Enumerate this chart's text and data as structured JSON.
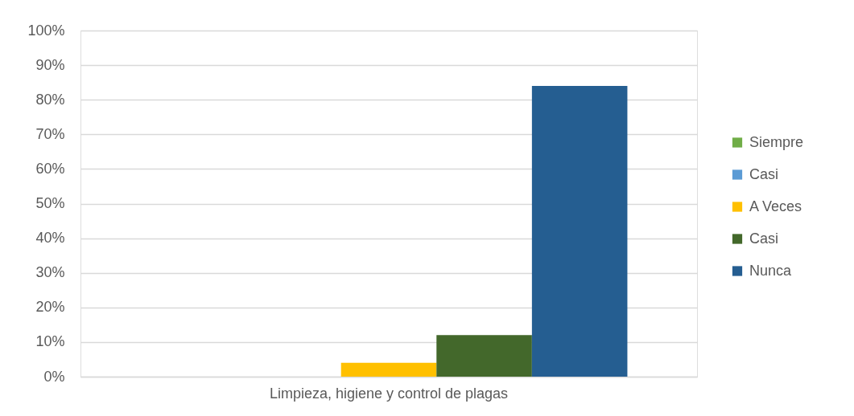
{
  "chart_data": {
    "type": "bar",
    "categories": [
      "Limpieza, higiene y control de plagas"
    ],
    "series": [
      {
        "name": "Siempre",
        "color": "#70ad47",
        "values": [
          0
        ]
      },
      {
        "name": "Casi",
        "color": "#5b9bd5",
        "values": [
          0
        ]
      },
      {
        "name": "A Veces",
        "color": "#ffc000",
        "values": [
          4
        ]
      },
      {
        "name": "Casi",
        "color": "#43682b",
        "values": [
          12
        ]
      },
      {
        "name": "Nunca",
        "color": "#255e91",
        "values": [
          84
        ]
      }
    ],
    "ylim": [
      0,
      100
    ],
    "yticks": [
      {
        "value": 0,
        "label": "0%"
      },
      {
        "value": 10,
        "label": "10%"
      },
      {
        "value": 20,
        "label": "20%"
      },
      {
        "value": 30,
        "label": "30%"
      },
      {
        "value": 40,
        "label": "40%"
      },
      {
        "value": 50,
        "label": "50%"
      },
      {
        "value": 60,
        "label": "60%"
      },
      {
        "value": 70,
        "label": "70%"
      },
      {
        "value": 80,
        "label": "80%"
      },
      {
        "value": 90,
        "label": "90%"
      },
      {
        "value": 100,
        "label": "100%"
      }
    ],
    "grid": "y",
    "legend": "right"
  }
}
